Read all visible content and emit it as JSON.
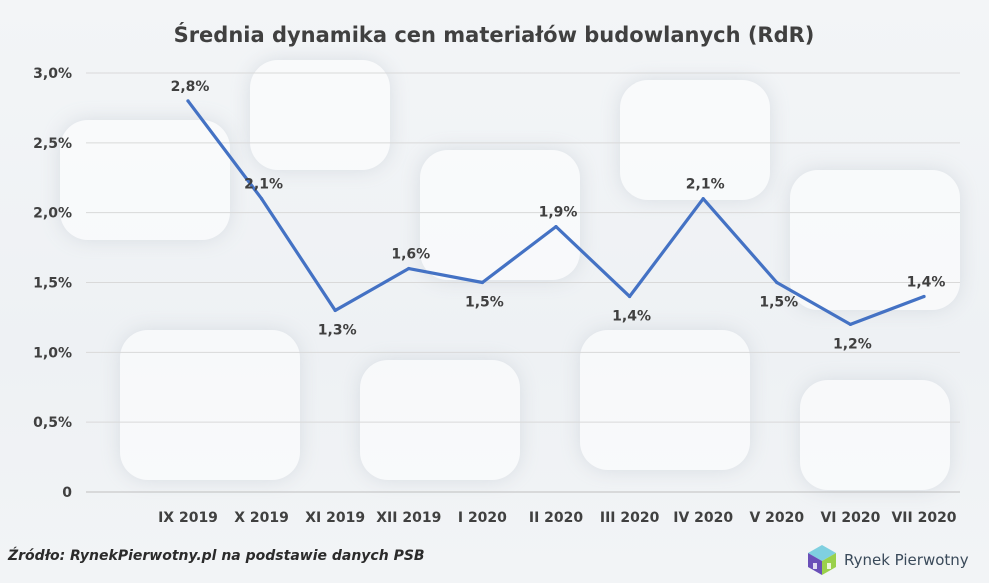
{
  "footer": {
    "source": "Źródło: RynekPierwotny.pl na podstawie danych PSB",
    "logo_text": "Rynek Pierwotny"
  },
  "colors": {
    "line": "#4472c4",
    "text": "#404040"
  },
  "chart_data": {
    "type": "line",
    "title": "Średnia dynamika cen materiałów budowlanych (RdR)",
    "xlabel": "",
    "ylabel": "",
    "categories": [
      "IX 2019",
      "X 2019",
      "XI 2019",
      "XII 2019",
      "I 2020",
      "II 2020",
      "III 2020",
      "IV 2020",
      "V 2020",
      "VI 2020",
      "VII 2020"
    ],
    "series": [
      {
        "values": [
          2.8,
          2.1,
          1.3,
          1.6,
          1.5,
          1.9,
          1.4,
          2.1,
          1.5,
          1.2,
          1.4
        ],
        "data_labels": [
          "2,8%",
          "2,1%",
          "1,3%",
          "1,6%",
          "1,5%",
          "1,9%",
          "1,4%",
          "2,1%",
          "1,5%",
          "1,2%",
          "1,4%"
        ],
        "label_positions": [
          "above",
          "above",
          "below",
          "above",
          "below",
          "above",
          "below",
          "above",
          "below",
          "below",
          "above"
        ]
      }
    ],
    "ylim": [
      0,
      3.0
    ],
    "yticks": [
      0,
      0.5,
      1.0,
      1.5,
      2.0,
      2.5,
      3.0
    ],
    "ytick_labels": [
      "0",
      "0,5%",
      "1,0%",
      "1,5%",
      "2,0%",
      "2,5%",
      "3,0%"
    ],
    "grid": true,
    "legend": "none"
  }
}
